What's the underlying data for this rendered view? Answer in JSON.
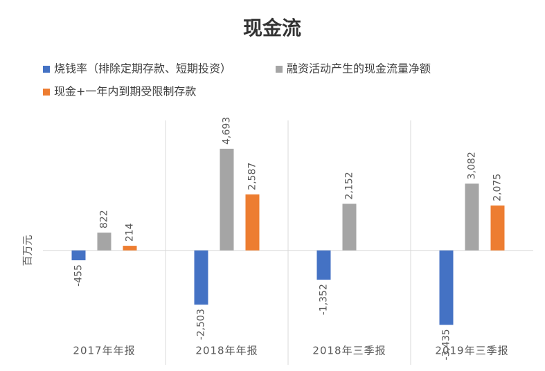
{
  "chart_data": {
    "type": "bar",
    "title": "现金流",
    "y_label": "百万元",
    "categories": [
      "2017年年报",
      "2018年年报",
      "2018年三季报",
      "2019年三季报"
    ],
    "series": [
      {
        "name": "烧钱率（排除定期存款、短期投资）",
        "color": "#4472c4",
        "values": [
          -455,
          -2503,
          -1352,
          -3435
        ],
        "value_labels": [
          "-455",
          "-2,503",
          "-1,352",
          "-3,435"
        ]
      },
      {
        "name": "融资活动产生的现金流量净额",
        "color": "#a5a5a5",
        "values": [
          822,
          4693,
          2152,
          3082
        ],
        "value_labels": [
          "822",
          "4,693",
          "2,152",
          "3,082"
        ]
      },
      {
        "name": "现金+一年内到期受限制存款",
        "color": "#ed7d31",
        "values": [
          214,
          2587,
          null,
          2075
        ],
        "value_labels": [
          "214",
          "2,587",
          null,
          "2,075"
        ]
      }
    ],
    "ylim": [
      -4000,
      6000
    ]
  }
}
